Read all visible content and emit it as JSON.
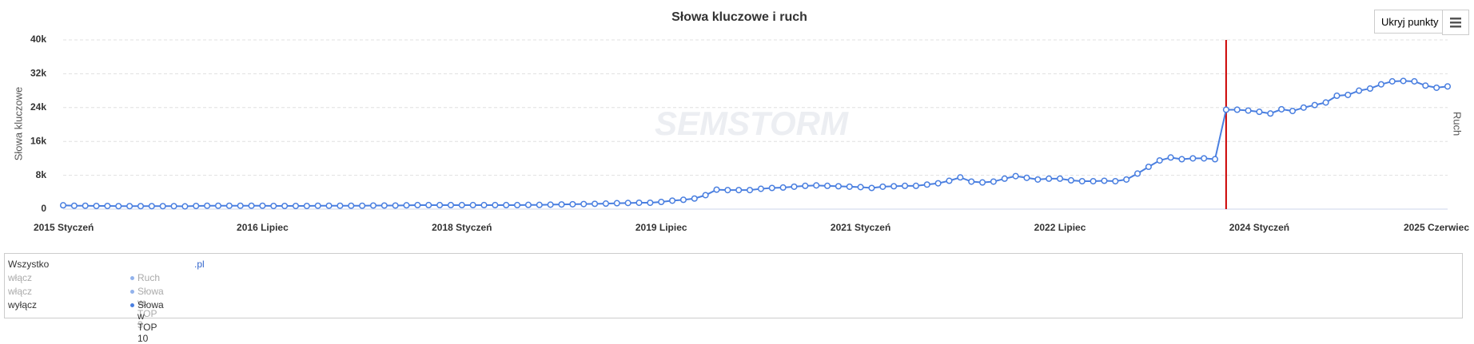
{
  "chart_data": {
    "type": "line",
    "title": "Słowa kluczowe i ruch",
    "y_label": "Słowa kluczowe",
    "y2_label": "Ruch",
    "watermark": "SEMSTORM",
    "categories": [
      "2015 Styczeń",
      null,
      null,
      null,
      null,
      null,
      null,
      null,
      null,
      null,
      null,
      null,
      null,
      null,
      null,
      null,
      null,
      null,
      "2016 Lipiec",
      null,
      null,
      null,
      null,
      null,
      null,
      null,
      null,
      null,
      null,
      null,
      null,
      null,
      null,
      null,
      null,
      null,
      "2018 Styczeń",
      null,
      null,
      null,
      null,
      null,
      null,
      null,
      null,
      null,
      null,
      null,
      null,
      null,
      null,
      null,
      null,
      null,
      "2019 Lipiec",
      null,
      null,
      null,
      null,
      null,
      null,
      null,
      null,
      null,
      null,
      null,
      null,
      null,
      null,
      null,
      null,
      null,
      "2021 Styczeń",
      null,
      null,
      null,
      null,
      null,
      null,
      null,
      null,
      null,
      null,
      null,
      null,
      null,
      null,
      null,
      null,
      null,
      "2022 Lipiec",
      null,
      null,
      null,
      null,
      null,
      null,
      null,
      null,
      null,
      null,
      null,
      null,
      null,
      null,
      null,
      null,
      null,
      "2024 Styczeń",
      null,
      null,
      null,
      null,
      null,
      null,
      null,
      null,
      null,
      null,
      null,
      null,
      null,
      null,
      null,
      null,
      "2025 Czerwiec"
    ],
    "series": [
      {
        "name": "Słowa w TOP 10",
        "color": "#4a7fe0",
        "values": [
          900,
          800,
          800,
          750,
          750,
          700,
          700,
          700,
          700,
          700,
          700,
          650,
          750,
          800,
          800,
          800,
          800,
          800,
          800,
          750,
          750,
          750,
          750,
          800,
          800,
          800,
          800,
          800,
          850,
          850,
          850,
          900,
          950,
          950,
          950,
          950,
          950,
          950,
          950,
          950,
          950,
          950,
          1000,
          1000,
          1050,
          1100,
          1150,
          1200,
          1250,
          1300,
          1400,
          1450,
          1500,
          1500,
          1700,
          2000,
          2200,
          2500,
          3300,
          4600,
          4500,
          4500,
          4500,
          4800,
          5000,
          5100,
          5300,
          5500,
          5600,
          5500,
          5400,
          5300,
          5200,
          5000,
          5300,
          5400,
          5500,
          5500,
          5800,
          6100,
          6700,
          7500,
          6500,
          6300,
          6500,
          7200,
          7800,
          7400,
          7000,
          7200,
          7200,
          6800,
          6600,
          6600,
          6700,
          6600,
          7000,
          8400,
          10000,
          11500,
          12200,
          11800,
          12000,
          12000,
          11800,
          23500,
          23500,
          23300,
          23000,
          22600,
          23600,
          23200,
          24000,
          24600,
          25200,
          26800,
          27000,
          28000,
          28500,
          29500,
          30200,
          30300,
          30200,
          29200,
          28700,
          29000
        ]
      }
    ],
    "ylim": [
      0,
      40000
    ],
    "yticks": [
      0,
      {
        "value": 8000,
        "label": "8k"
      },
      {
        "value": 16000,
        "label": "16k"
      },
      {
        "value": 24000,
        "label": "24k"
      },
      {
        "value": 32000,
        "label": "32k"
      },
      {
        "value": 40000,
        "label": "40k"
      }
    ],
    "grid": true,
    "plot_line": {
      "index": 105,
      "color": "#cc0000"
    }
  },
  "ui": {
    "hide_points_button": "Ukryj punkty",
    "legend": {
      "all_label": "Wszystko",
      "domain": ".pl",
      "rows": [
        {
          "toggle": "włącz",
          "name": "Ruch"
        },
        {
          "toggle": "włącz",
          "name": "Słowa w TOP 3"
        },
        {
          "toggle": "wyłącz",
          "name": "Słowa w TOP 10"
        }
      ]
    }
  }
}
